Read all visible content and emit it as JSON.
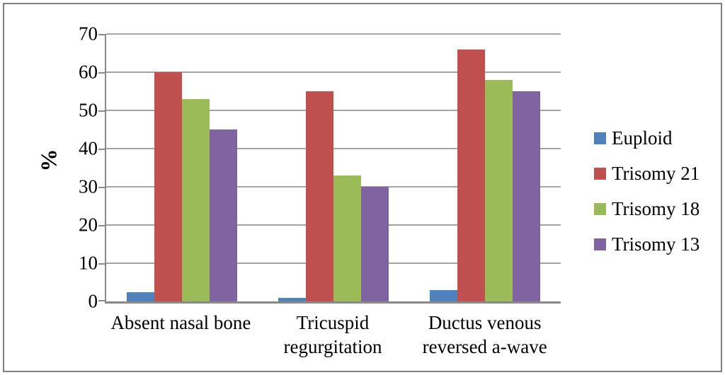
{
  "chart_data": {
    "type": "bar",
    "title": "",
    "xlabel": "",
    "ylabel": "%",
    "categories": [
      "Absent nasal bone",
      "Tricuspid\nregurgitation",
      "Ductus venous\nreversed a-wave"
    ],
    "series": [
      {
        "name": "Euploid",
        "color": "#4F81BD",
        "values": [
          2.5,
          1,
          3
        ]
      },
      {
        "name": "Trisomy 21",
        "color": "#C0504D",
        "values": [
          60,
          55,
          66
        ]
      },
      {
        "name": "Trisomy 18",
        "color": "#9BBB59",
        "values": [
          53,
          33,
          58
        ]
      },
      {
        "name": "Trisomy 13",
        "color": "#8064A2",
        "values": [
          45,
          30,
          55
        ]
      }
    ],
    "ylim": [
      0,
      70
    ],
    "yticks": [
      0,
      10,
      20,
      30,
      40,
      50,
      60,
      70
    ],
    "grid": true,
    "legend_position": "right",
    "colors": {
      "gridline": "#a3a3a3",
      "axis": "#8a8a8a",
      "figure_border": "#7f7f7f",
      "background": "#ffffff",
      "text": "#000000"
    }
  }
}
